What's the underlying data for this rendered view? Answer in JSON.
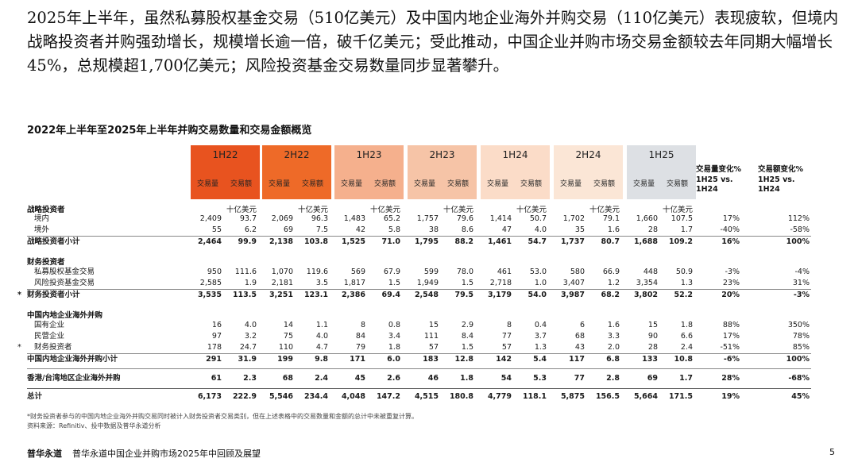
{
  "intro_text": "2025年上半年，虽然私募股权基金交易（510亿美元）及中国内地企业海外并购交易（110亿美元）表现疲软，但境内战略投资者并购强劲增长，规模增长逾一倍，破千亿美元；受此推动，中国企业并购市场交易金额较去年同期大幅增长45%，总规模超1,700亿美元；风险投资基金交易数量同步显著攀升。",
  "table_title": "2022年上半年至2025年上半年并购交易数量和交易金额概览",
  "periods": [
    {
      "label": "1H22",
      "color": "#e8531f"
    },
    {
      "label": "2H22",
      "color": "#ee6a28"
    },
    {
      "label": "1H23",
      "color": "#f5b08d"
    },
    {
      "label": "2H23",
      "color": "#f6c4a7"
    },
    {
      "label": "1H24",
      "color": "#fbdcc8"
    },
    {
      "label": "2H24",
      "color": "#fbe6d6"
    },
    {
      "label": "1H25",
      "color": "#dde0e4"
    }
  ],
  "col_labels": {
    "volume": "交易量",
    "value": "交易额"
  },
  "change_headers": {
    "volume": [
      "交易量变化%",
      "1H25 vs.",
      "1H24"
    ],
    "value": [
      "交易额变化%",
      "1H25 vs.",
      "1H24"
    ]
  },
  "unit_label": "十亿美元",
  "groups": {
    "strategic": "战略投资者",
    "financial": "财务投资者",
    "outbound": "中国内地企业海外并购"
  },
  "rows": {
    "s_domestic": {
      "label": "境内",
      "cells": [
        "2,409",
        "93.7",
        "2,069",
        "96.3",
        "1,483",
        "65.2",
        "1,757",
        "79.6",
        "1,414",
        "50.7",
        "1,702",
        "79.1",
        "1,660",
        "107.5",
        "17%",
        "112%"
      ]
    },
    "s_overseas": {
      "label": "境外",
      "cells": [
        "55",
        "6.2",
        "69",
        "7.5",
        "42",
        "5.8",
        "38",
        "8.6",
        "47",
        "4.0",
        "35",
        "1.6",
        "28",
        "1.7",
        "-40%",
        "-58%"
      ]
    },
    "s_subtotal": {
      "label": "战略投资者小计",
      "cells": [
        "2,464",
        "99.9",
        "2,138",
        "103.8",
        "1,525",
        "71.0",
        "1,795",
        "88.2",
        "1,461",
        "54.7",
        "1,737",
        "80.7",
        "1,688",
        "109.2",
        "16%",
        "100%"
      ]
    },
    "f_pe": {
      "label": "私募股权基金交易",
      "cells": [
        "950",
        "111.6",
        "1,070",
        "119.6",
        "569",
        "67.9",
        "599",
        "78.0",
        "461",
        "53.0",
        "580",
        "66.9",
        "448",
        "50.9",
        "-3%",
        "-4%"
      ]
    },
    "f_vc": {
      "label": "风险投资基金交易",
      "cells": [
        "2,585",
        "1.9",
        "2,181",
        "3.5",
        "1,817",
        "1.5",
        "1,949",
        "1.5",
        "2,718",
        "1.0",
        "3,407",
        "1.2",
        "3,354",
        "1.3",
        "23%",
        "31%"
      ]
    },
    "f_subtotal": {
      "label": "财务投资者小计",
      "star": "*",
      "cells": [
        "3,535",
        "113.5",
        "3,251",
        "123.1",
        "2,386",
        "69.4",
        "2,548",
        "79.5",
        "3,179",
        "54.0",
        "3,987",
        "68.2",
        "3,802",
        "52.2",
        "20%",
        "-3%"
      ]
    },
    "o_soe": {
      "label": "国有企业",
      "cells": [
        "16",
        "4.0",
        "14",
        "1.1",
        "8",
        "0.8",
        "15",
        "2.9",
        "8",
        "0.4",
        "6",
        "1.6",
        "15",
        "1.8",
        "88%",
        "350%"
      ]
    },
    "o_private": {
      "label": "民营企业",
      "cells": [
        "97",
        "3.2",
        "75",
        "4.0",
        "84",
        "3.4",
        "111",
        "8.4",
        "77",
        "3.7",
        "68",
        "3.3",
        "90",
        "6.6",
        "17%",
        "78%"
      ]
    },
    "o_financial": {
      "label": "财务投资者",
      "star": "*",
      "cells": [
        "178",
        "24.7",
        "110",
        "4.7",
        "79",
        "1.8",
        "57",
        "1.5",
        "57",
        "1.3",
        "43",
        "2.0",
        "28",
        "2.4",
        "-51%",
        "85%"
      ]
    },
    "o_subtotal": {
      "label": "中国内地企业海外并购小计",
      "cells": [
        "291",
        "31.9",
        "199",
        "9.8",
        "171",
        "6.0",
        "183",
        "12.8",
        "142",
        "5.4",
        "117",
        "6.8",
        "133",
        "10.8",
        "-6%",
        "100%"
      ]
    },
    "hk_tw": {
      "label": "香港/台湾地区企业海外并购",
      "cells": [
        "61",
        "2.3",
        "68",
        "2.4",
        "45",
        "2.6",
        "46",
        "1.8",
        "54",
        "5.3",
        "77",
        "2.8",
        "69",
        "1.7",
        "28%",
        "-68%"
      ]
    },
    "total": {
      "label": "总计",
      "cells": [
        "6,173",
        "222.9",
        "5,546",
        "234.4",
        "4,048",
        "147.2",
        "4,515",
        "180.8",
        "4,779",
        "118.1",
        "5,875",
        "156.5",
        "5,664",
        "171.5",
        "19%",
        "45%"
      ]
    }
  },
  "footnote_1": "*财务投资者参与的中国内地企业海外并购交易同时被计入财务投资者交易类别，但在上述表格中的交易数量和金额的总计中未被重复计算。",
  "footnote_2": "资料来源：Refinitiv、投中数据及普华永道分析",
  "footer": {
    "brand": "普华永道",
    "text": "普华永道中国企业并购市场2025年中回顾及展望",
    "page": "5"
  }
}
